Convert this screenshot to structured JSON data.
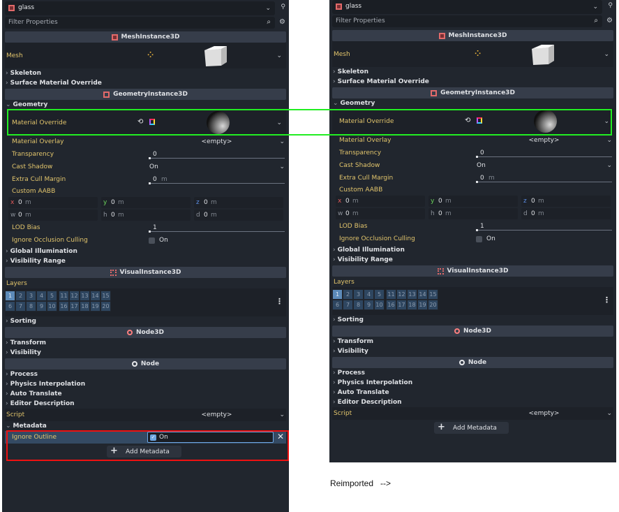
{
  "panels": [
    {
      "id": "original",
      "node_name": "glass",
      "filter_placeholder": "Filter Properties",
      "rows": [
        {
          "type": "class",
          "label": "MeshInstance3D",
          "icon": "mesh-instance-icon"
        },
        {
          "type": "resource",
          "label": "Mesh",
          "icon": "new-mesh-icon",
          "preview": "cube"
        },
        {
          "type": "group",
          "label": "Skeleton"
        },
        {
          "type": "group",
          "label": "Surface Material Override"
        },
        {
          "type": "class",
          "label": "GeometryInstance3D",
          "icon": "geometry-instance-icon"
        },
        {
          "type": "group",
          "label": "Geometry",
          "open": true
        },
        {
          "type": "resource",
          "label": "Material Override",
          "indent": true,
          "icon": "material-icon",
          "reset": true,
          "preview": "sphere"
        },
        {
          "type": "dropdown",
          "label": "Material Overlay",
          "value": "<empty>",
          "centered": true
        },
        {
          "type": "slider",
          "label": "Transparency",
          "value": "0"
        },
        {
          "type": "dropdown",
          "label": "Cast Shadow",
          "value": "On"
        },
        {
          "type": "slider",
          "label": "Extra Cull Margin",
          "value": "0",
          "unit": "m"
        },
        {
          "type": "label",
          "label": "Custom AABB"
        },
        {
          "type": "vector",
          "fields": [
            {
              "axis": "x",
              "value": "0",
              "unit": "m"
            },
            {
              "axis": "y",
              "value": "0",
              "unit": "m"
            },
            {
              "axis": "z",
              "value": "0",
              "unit": "m"
            }
          ]
        },
        {
          "type": "vector",
          "fields": [
            {
              "axis": "w",
              "value": "0",
              "unit": "m"
            },
            {
              "axis": "h",
              "value": "0",
              "unit": "m"
            },
            {
              "axis": "d",
              "value": "0",
              "unit": "m"
            }
          ]
        },
        {
          "type": "slider",
          "label": "LOD Bias",
          "value": "1"
        },
        {
          "type": "check",
          "label": "Ignore Occlusion Culling",
          "value": "On",
          "checked": false
        },
        {
          "type": "group",
          "label": "Global Illumination"
        },
        {
          "type": "group",
          "label": "Visibility Range"
        },
        {
          "type": "class",
          "label": "VisualInstance3D",
          "icon": "visual-instance-icon"
        },
        {
          "type": "label",
          "label": "Layers",
          "top": true
        },
        {
          "type": "layers",
          "cells": [
            "1",
            "2",
            "3",
            "4",
            "5",
            "6",
            "7",
            "8",
            "9",
            "10",
            "11",
            "12",
            "13",
            "14",
            "15",
            "16",
            "17",
            "18",
            "19",
            "20"
          ],
          "active": [
            "1"
          ]
        },
        {
          "type": "group",
          "label": "Sorting"
        },
        {
          "type": "class",
          "label": "Node3D",
          "icon": "node3d-icon"
        },
        {
          "type": "group",
          "label": "Transform"
        },
        {
          "type": "group",
          "label": "Visibility"
        },
        {
          "type": "class",
          "label": "Node",
          "icon": "node-icon"
        },
        {
          "type": "group",
          "label": "Process"
        },
        {
          "type": "group",
          "label": "Physics Interpolation"
        },
        {
          "type": "group",
          "label": "Auto Translate"
        },
        {
          "type": "group",
          "label": "Editor Description"
        },
        {
          "type": "dropdown",
          "label": "Script",
          "value": "<empty>",
          "centered": true,
          "top": true
        },
        {
          "type": "group",
          "label": "Metadata",
          "open": true
        },
        {
          "type": "meta",
          "label": "Ignore Outline",
          "value": "On",
          "checked": true
        },
        {
          "type": "add",
          "label": "Add Metadata"
        }
      ]
    },
    {
      "id": "reimported",
      "node_name": "glass",
      "filter_placeholder": "Filter Properties",
      "rows": [
        {
          "type": "class",
          "label": "MeshInstance3D",
          "icon": "mesh-instance-icon"
        },
        {
          "type": "resource",
          "label": "Mesh",
          "icon": "new-mesh-icon",
          "preview": "cube"
        },
        {
          "type": "group",
          "label": "Skeleton"
        },
        {
          "type": "group",
          "label": "Surface Material Override"
        },
        {
          "type": "class",
          "label": "GeometryInstance3D",
          "icon": "geometry-instance-icon"
        },
        {
          "type": "group",
          "label": "Geometry",
          "open": true
        },
        {
          "type": "resource",
          "label": "Material Override",
          "indent": true,
          "icon": "material-icon",
          "reset": true,
          "preview": "sphere"
        },
        {
          "type": "dropdown",
          "label": "Material Overlay",
          "value": "<empty>",
          "centered": true
        },
        {
          "type": "slider",
          "label": "Transparency",
          "value": "0"
        },
        {
          "type": "dropdown",
          "label": "Cast Shadow",
          "value": "On"
        },
        {
          "type": "slider",
          "label": "Extra Cull Margin",
          "value": "0",
          "unit": "m"
        },
        {
          "type": "label",
          "label": "Custom AABB"
        },
        {
          "type": "vector",
          "fields": [
            {
              "axis": "x",
              "value": "0",
              "unit": "m"
            },
            {
              "axis": "y",
              "value": "0",
              "unit": "m"
            },
            {
              "axis": "z",
              "value": "0",
              "unit": "m"
            }
          ]
        },
        {
          "type": "vector",
          "fields": [
            {
              "axis": "w",
              "value": "0",
              "unit": "m"
            },
            {
              "axis": "h",
              "value": "0",
              "unit": "m"
            },
            {
              "axis": "d",
              "value": "0",
              "unit": "m"
            }
          ]
        },
        {
          "type": "slider",
          "label": "LOD Bias",
          "value": "1"
        },
        {
          "type": "check",
          "label": "Ignore Occlusion Culling",
          "value": "On",
          "checked": false
        },
        {
          "type": "group",
          "label": "Global Illumination"
        },
        {
          "type": "group",
          "label": "Visibility Range"
        },
        {
          "type": "class",
          "label": "VisualInstance3D",
          "icon": "visual-instance-icon"
        },
        {
          "type": "label",
          "label": "Layers",
          "top": true
        },
        {
          "type": "layers",
          "cells": [
            "1",
            "2",
            "3",
            "4",
            "5",
            "6",
            "7",
            "8",
            "9",
            "10",
            "11",
            "12",
            "13",
            "14",
            "15",
            "16",
            "17",
            "18",
            "19",
            "20"
          ],
          "active": [
            "1"
          ]
        },
        {
          "type": "group",
          "label": "Sorting"
        },
        {
          "type": "class",
          "label": "Node3D",
          "icon": "node3d-icon"
        },
        {
          "type": "group",
          "label": "Transform"
        },
        {
          "type": "group",
          "label": "Visibility"
        },
        {
          "type": "class",
          "label": "Node",
          "icon": "node-icon"
        },
        {
          "type": "group",
          "label": "Process"
        },
        {
          "type": "group",
          "label": "Physics Interpolation"
        },
        {
          "type": "group",
          "label": "Auto Translate"
        },
        {
          "type": "group",
          "label": "Editor Description"
        },
        {
          "type": "dropdown",
          "label": "Script",
          "value": "<empty>",
          "centered": true,
          "top": true
        },
        {
          "type": "add",
          "label": "Add Metadata"
        }
      ]
    }
  ],
  "annotations": {
    "caption": "Reimported   -->",
    "highlight_colors": {
      "material_override": "#22ee22",
      "metadata": "#ee1111"
    }
  },
  "colors": {
    "panel_bg": "#21262e",
    "section_bg": "#363d4a",
    "property_label": "#e2c56c",
    "layer_active": "#5c8ab8"
  }
}
